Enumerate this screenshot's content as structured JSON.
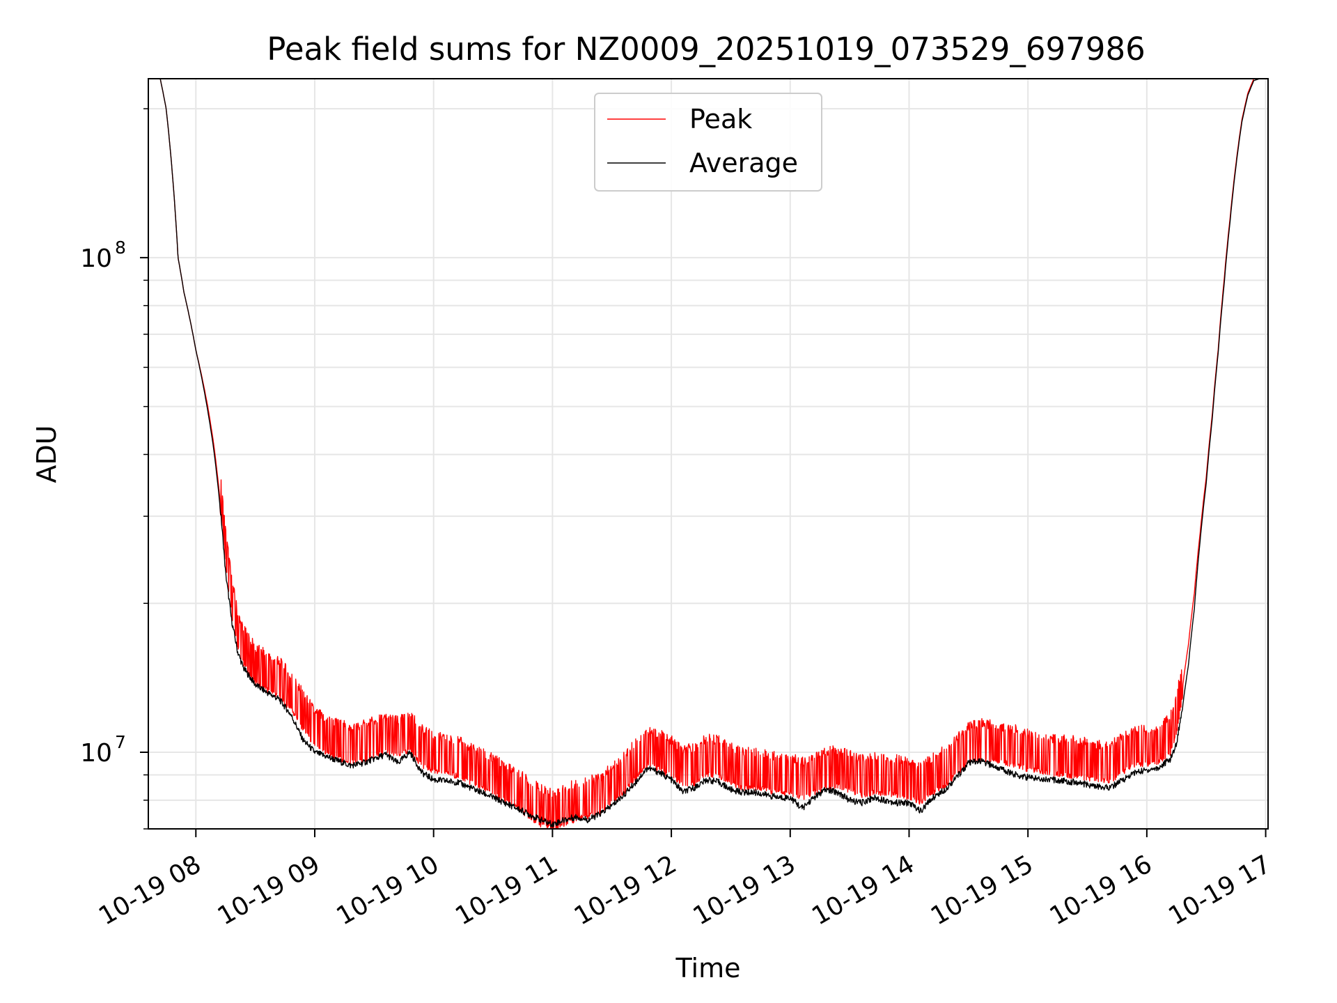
{
  "chart_data": {
    "type": "line",
    "title": "Peak field sums for NZ0009_20251019_073529_697986",
    "xlabel": "Time",
    "ylabel": "ADU",
    "yscale": "log",
    "ylim": [
      7000000,
      230000000
    ],
    "xlim_hours": [
      7.6,
      17.02
    ],
    "grid": true,
    "legend_position": "top-center",
    "colors": {
      "Peak": "#ff0000",
      "Average": "#000000"
    },
    "x_ticks": [
      {
        "hour": 8,
        "label": "10-19 08"
      },
      {
        "hour": 9,
        "label": "10-19 09"
      },
      {
        "hour": 10,
        "label": "10-19 10"
      },
      {
        "hour": 11,
        "label": "10-19 11"
      },
      {
        "hour": 12,
        "label": "10-19 12"
      },
      {
        "hour": 13,
        "label": "10-19 13"
      },
      {
        "hour": 14,
        "label": "10-19 14"
      },
      {
        "hour": 15,
        "label": "10-19 15"
      },
      {
        "hour": 16,
        "label": "10-19 16"
      },
      {
        "hour": 17,
        "label": "10-19 17"
      }
    ],
    "y_major_ticks": [
      {
        "value": 10000000,
        "base": "10",
        "exp": "7"
      },
      {
        "value": 100000000,
        "base": "10",
        "exp": "8"
      }
    ],
    "y_minor_ticks": [
      7000000,
      8000000,
      9000000,
      20000000,
      30000000,
      40000000,
      50000000,
      60000000,
      70000000,
      80000000,
      90000000,
      200000000
    ],
    "series": [
      {
        "name": "Peak",
        "spiky": true,
        "x_hours": [
          7.7,
          7.75,
          7.8,
          7.85,
          7.9,
          8.0,
          8.1,
          8.15,
          8.2,
          8.25,
          8.3,
          8.35,
          8.4,
          8.5,
          8.6,
          8.7,
          8.8,
          8.9,
          9.0,
          9.1,
          9.2,
          9.3,
          9.4,
          9.5,
          9.6,
          9.7,
          9.8,
          9.9,
          10.0,
          10.2,
          10.4,
          10.6,
          10.8,
          10.9,
          11.0,
          11.1,
          11.2,
          11.3,
          11.4,
          11.5,
          11.6,
          11.7,
          11.8,
          11.9,
          12.0,
          12.1,
          12.2,
          12.3,
          12.4,
          12.5,
          12.6,
          12.7,
          12.8,
          12.9,
          13.0,
          13.1,
          13.2,
          13.3,
          13.4,
          13.5,
          13.6,
          13.7,
          13.8,
          13.9,
          14.0,
          14.1,
          14.2,
          14.3,
          14.4,
          14.5,
          14.6,
          14.7,
          14.8,
          14.9,
          15.0,
          15.2,
          15.4,
          15.6,
          15.7,
          15.8,
          15.9,
          16.0,
          16.1,
          16.2,
          16.25,
          16.3,
          16.35,
          16.4,
          16.45,
          16.5,
          16.55,
          16.6,
          16.65,
          16.7,
          16.75,
          16.8,
          16.85,
          16.9,
          16.95,
          17.0
        ],
        "values": [
          230000000,
          200000000,
          150000000,
          100000000,
          85000000,
          65000000,
          50000000,
          42000000,
          33000000,
          25000000,
          20000000,
          17200000,
          15800000,
          14500000,
          14000000,
          13600000,
          12800000,
          11700000,
          10800000,
          10400000,
          10200000,
          10000000,
          10100000,
          10300000,
          10500000,
          10300000,
          10600000,
          9900000,
          9600000,
          9400000,
          8900000,
          8400000,
          7800000,
          7500000,
          7350000,
          7500000,
          7700000,
          7800000,
          7900000,
          8300000,
          8700000,
          9300000,
          9900000,
          9700000,
          9400000,
          9000000,
          9100000,
          9500000,
          9400000,
          9100000,
          8900000,
          8900000,
          8800000,
          8700000,
          8700000,
          8500000,
          8700000,
          8900000,
          9000000,
          8800000,
          8600000,
          8700000,
          8700000,
          8600000,
          8500000,
          8300000,
          8700000,
          9000000,
          9500000,
          10000000,
          10200000,
          10100000,
          10000000,
          9900000,
          9700000,
          9500000,
          9400000,
          9200000,
          9200000,
          9600000,
          9900000,
          9900000,
          10000000,
          10500000,
          11500000,
          13500000,
          16500000,
          21000000,
          28000000,
          36000000,
          48000000,
          65000000,
          90000000,
          120000000,
          155000000,
          190000000,
          215000000,
          230000000,
          230000000,
          230000000
        ]
      },
      {
        "name": "Average",
        "spiky": false,
        "x_hours": [
          7.7,
          7.75,
          7.8,
          7.85,
          7.9,
          8.0,
          8.1,
          8.15,
          8.2,
          8.25,
          8.3,
          8.35,
          8.4,
          8.5,
          8.6,
          8.7,
          8.8,
          8.9,
          9.0,
          9.1,
          9.2,
          9.3,
          9.4,
          9.5,
          9.6,
          9.7,
          9.8,
          9.9,
          10.0,
          10.2,
          10.4,
          10.6,
          10.8,
          10.9,
          11.0,
          11.1,
          11.2,
          11.3,
          11.4,
          11.5,
          11.6,
          11.7,
          11.8,
          11.9,
          12.0,
          12.1,
          12.2,
          12.3,
          12.4,
          12.5,
          12.6,
          12.7,
          12.8,
          12.9,
          13.0,
          13.1,
          13.2,
          13.3,
          13.4,
          13.5,
          13.6,
          13.7,
          13.8,
          13.9,
          14.0,
          14.1,
          14.2,
          14.3,
          14.4,
          14.5,
          14.6,
          14.7,
          14.8,
          14.9,
          15.0,
          15.2,
          15.4,
          15.6,
          15.7,
          15.8,
          15.9,
          16.0,
          16.1,
          16.2,
          16.25,
          16.3,
          16.35,
          16.4,
          16.45,
          16.5,
          16.55,
          16.6,
          16.65,
          16.7,
          16.75,
          16.8,
          16.85,
          16.9,
          16.95,
          17.0
        ],
        "values": [
          230000000,
          200000000,
          150000000,
          100000000,
          85000000,
          65000000,
          49000000,
          41000000,
          32000000,
          23000000,
          18500000,
          16000000,
          14800000,
          13700000,
          13200000,
          12800000,
          11900000,
          10600000,
          10000000,
          9800000,
          9600000,
          9400000,
          9500000,
          9700000,
          9900000,
          9500000,
          10000000,
          9100000,
          8800000,
          8700000,
          8300000,
          7900000,
          7500000,
          7300000,
          7150000,
          7300000,
          7400000,
          7300000,
          7500000,
          7800000,
          8200000,
          8700000,
          9300000,
          9100000,
          8800000,
          8300000,
          8500000,
          8800000,
          8700000,
          8400000,
          8300000,
          8300000,
          8200000,
          8100000,
          8100000,
          7700000,
          8100000,
          8400000,
          8300000,
          8000000,
          7900000,
          8100000,
          8000000,
          7900000,
          7900000,
          7600000,
          8100000,
          8400000,
          8900000,
          9500000,
          9600000,
          9400000,
          9200000,
          9000000,
          8900000,
          8800000,
          8700000,
          8500000,
          8500000,
          8800000,
          9100000,
          9200000,
          9300000,
          9700000,
          10400000,
          12300000,
          15000000,
          19500000,
          27000000,
          35000000,
          47000000,
          64000000,
          88000000,
          118000000,
          153000000,
          188000000,
          213000000,
          228000000,
          230000000,
          230000000
        ]
      }
    ]
  }
}
